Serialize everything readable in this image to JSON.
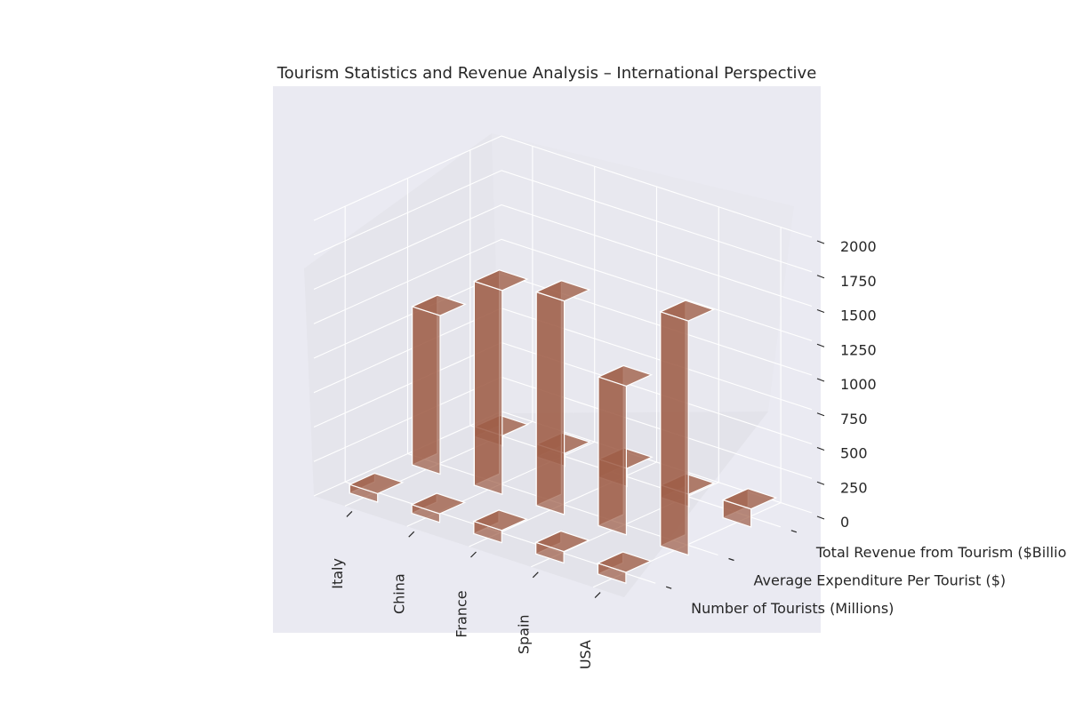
{
  "chart_data": {
    "type": "bar",
    "subtype": "3d-bar",
    "title": "Tourism Statistics and Revenue Analysis – International Perspective",
    "categories": [
      "Italy",
      "China",
      "France",
      "Spain",
      "USA"
    ],
    "series": [
      {
        "name": "Number of Tourists (Millions)",
        "values": [
          62,
          63,
          89,
          83,
          79
        ]
      },
      {
        "name": "Average Expenditure Per Tourist ($)",
        "values": [
          1150,
          1480,
          1550,
          1080,
          1700
        ]
      },
      {
        "name": "Total Revenue from Tourism ($Billion)",
        "values": [
          74,
          93,
          131,
          90,
          130
        ]
      }
    ],
    "zticks": [
      "0",
      "250",
      "500",
      "750",
      "1000",
      "1250",
      "1500",
      "1750",
      "2000"
    ],
    "zlim": [
      0,
      2000
    ],
    "grid": true,
    "bar_color": "#a0604a",
    "pane_color": "#eaeaf2",
    "floor_color": "#e3e3ea"
  }
}
